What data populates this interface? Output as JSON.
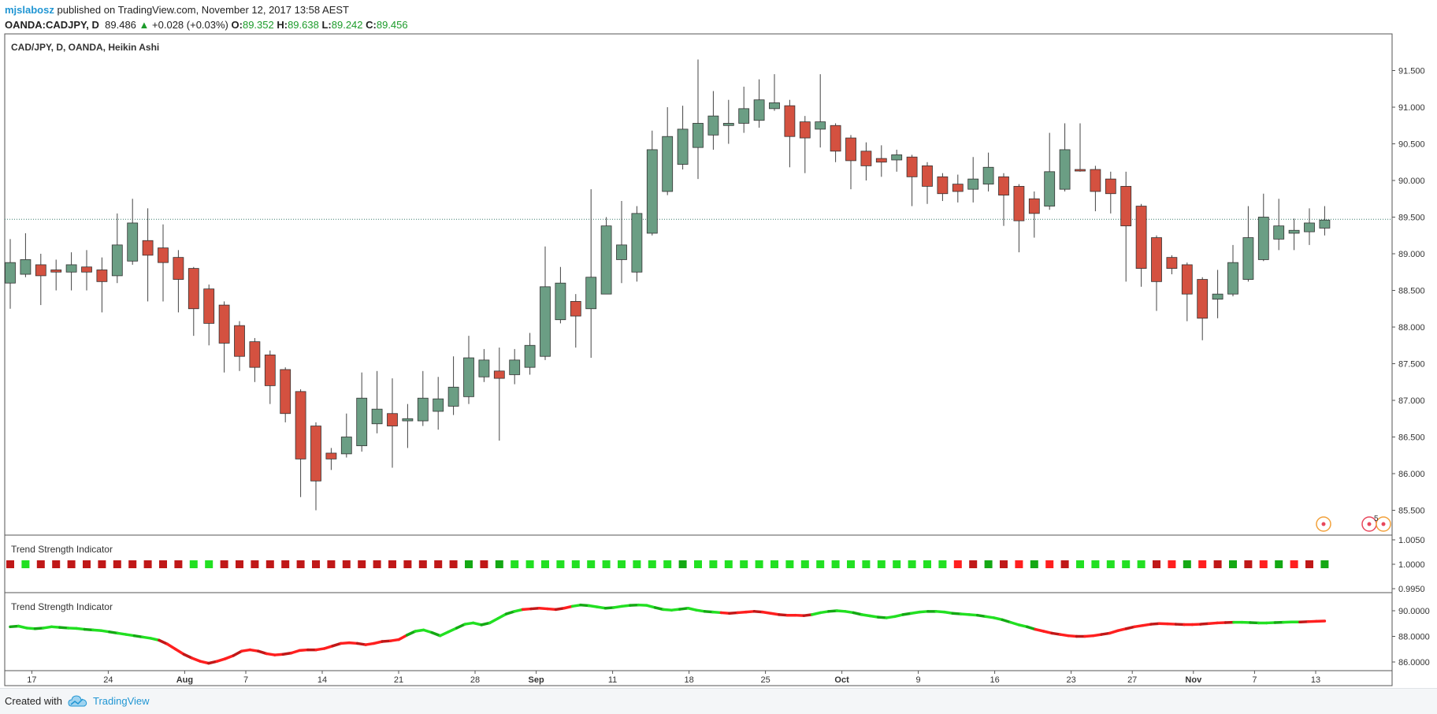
{
  "header": {
    "user": "mjslabosz",
    "published": "published on TradingView.com, November 12, 2017 13:58 AEST",
    "symbol": "OANDA:CADJPY, D",
    "last": "89.486",
    "change_arrow": "▲",
    "change": "+0.028 (+0.03%)",
    "o_label": "O:",
    "o_value": "89.352",
    "h_label": "H:",
    "h_value": "89.638",
    "l_label": "L:",
    "l_value": "89.242",
    "c_label": "C:",
    "c_value": "89.456"
  },
  "footer": {
    "created_with": "Created with",
    "brand": "TradingView"
  },
  "markers": {
    "badge_count": "5"
  },
  "colors": {
    "up_candle": "#6b9e84",
    "down_candle": "#d45140",
    "bright_green": "#22e022",
    "dark_green": "#14a814",
    "bright_red": "#ff1f1f",
    "dark_red": "#c01818",
    "marker_orange": "#f2a13b",
    "marker_red": "#e8475c"
  },
  "chart_data": [
    {
      "type": "candlestick",
      "title": "CAD/JPY, D, OANDA, Heikin Ashi",
      "y_ticks": [
        "91.500",
        "91.000",
        "90.500",
        "90.000",
        "89.500",
        "89.000",
        "88.500",
        "88.000",
        "87.500",
        "87.000",
        "86.500",
        "86.000",
        "85.500"
      ],
      "ylim": [
        85.2,
        91.9
      ],
      "last_price_line": 89.47,
      "x_ticks": [
        {
          "i": 1,
          "label": "17"
        },
        {
          "i": 6,
          "label": "24"
        },
        {
          "i": 11,
          "label": "Aug"
        },
        {
          "i": 15,
          "label": "7"
        },
        {
          "i": 20,
          "label": "14"
        },
        {
          "i": 25,
          "label": "21"
        },
        {
          "i": 30,
          "label": "28"
        },
        {
          "i": 34,
          "label": "Sep"
        },
        {
          "i": 39,
          "label": "11"
        },
        {
          "i": 44,
          "label": "18"
        },
        {
          "i": 49,
          "label": "25"
        },
        {
          "i": 54,
          "label": "Oct"
        },
        {
          "i": 59,
          "label": "9"
        },
        {
          "i": 64,
          "label": "16"
        },
        {
          "i": 69,
          "label": "23"
        },
        {
          "i": 73,
          "label": "27"
        },
        {
          "i": 77,
          "label": "Nov"
        },
        {
          "i": 81,
          "label": "7"
        },
        {
          "i": 85,
          "label": "13"
        }
      ],
      "candles": [
        {
          "o": 88.6,
          "h": 89.2,
          "l": 88.25,
          "c": 88.88
        },
        {
          "o": 88.72,
          "h": 89.28,
          "l": 88.68,
          "c": 88.92
        },
        {
          "o": 88.85,
          "h": 89.0,
          "l": 88.3,
          "c": 88.7
        },
        {
          "o": 88.78,
          "h": 88.92,
          "l": 88.5,
          "c": 88.75
        },
        {
          "o": 88.75,
          "h": 89.02,
          "l": 88.5,
          "c": 88.85
        },
        {
          "o": 88.82,
          "h": 89.05,
          "l": 88.5,
          "c": 88.75
        },
        {
          "o": 88.78,
          "h": 88.95,
          "l": 88.2,
          "c": 88.62
        },
        {
          "o": 88.7,
          "h": 89.55,
          "l": 88.6,
          "c": 89.12
        },
        {
          "o": 88.9,
          "h": 89.75,
          "l": 88.85,
          "c": 89.42
        },
        {
          "o": 89.18,
          "h": 89.62,
          "l": 88.35,
          "c": 88.98
        },
        {
          "o": 89.08,
          "h": 89.4,
          "l": 88.35,
          "c": 88.88
        },
        {
          "o": 88.95,
          "h": 89.05,
          "l": 88.2,
          "c": 88.65
        },
        {
          "o": 88.8,
          "h": 88.82,
          "l": 87.88,
          "c": 88.25
        },
        {
          "o": 88.52,
          "h": 88.58,
          "l": 87.75,
          "c": 88.05
        },
        {
          "o": 88.3,
          "h": 88.35,
          "l": 87.38,
          "c": 87.78
        },
        {
          "o": 88.02,
          "h": 88.08,
          "l": 87.4,
          "c": 87.6
        },
        {
          "o": 87.8,
          "h": 87.85,
          "l": 87.25,
          "c": 87.45
        },
        {
          "o": 87.62,
          "h": 87.68,
          "l": 86.95,
          "c": 87.2
        },
        {
          "o": 87.42,
          "h": 87.45,
          "l": 86.7,
          "c": 86.82
        },
        {
          "o": 87.12,
          "h": 87.15,
          "l": 85.68,
          "c": 86.2
        },
        {
          "o": 86.65,
          "h": 86.7,
          "l": 85.5,
          "c": 85.9
        },
        {
          "o": 86.28,
          "h": 86.35,
          "l": 86.05,
          "c": 86.2
        },
        {
          "o": 86.27,
          "h": 86.82,
          "l": 86.22,
          "c": 86.5
        },
        {
          "o": 86.38,
          "h": 87.38,
          "l": 86.3,
          "c": 87.03
        },
        {
          "o": 86.68,
          "h": 87.4,
          "l": 86.55,
          "c": 86.88
        },
        {
          "o": 86.82,
          "h": 87.3,
          "l": 86.08,
          "c": 86.65
        },
        {
          "o": 86.72,
          "h": 86.95,
          "l": 86.35,
          "c": 86.75
        },
        {
          "o": 86.72,
          "h": 87.4,
          "l": 86.65,
          "c": 87.03
        },
        {
          "o": 86.85,
          "h": 87.32,
          "l": 86.6,
          "c": 87.02
        },
        {
          "o": 86.92,
          "h": 87.6,
          "l": 86.8,
          "c": 87.18
        },
        {
          "o": 87.05,
          "h": 87.88,
          "l": 86.95,
          "c": 87.58
        },
        {
          "o": 87.32,
          "h": 87.7,
          "l": 87.25,
          "c": 87.55
        },
        {
          "o": 87.4,
          "h": 87.72,
          "l": 86.45,
          "c": 87.3
        },
        {
          "o": 87.35,
          "h": 87.7,
          "l": 87.22,
          "c": 87.55
        },
        {
          "o": 87.45,
          "h": 87.92,
          "l": 87.35,
          "c": 87.75
        },
        {
          "o": 87.6,
          "h": 89.1,
          "l": 87.55,
          "c": 88.55
        },
        {
          "o": 88.1,
          "h": 88.82,
          "l": 88.05,
          "c": 88.6
        },
        {
          "o": 88.35,
          "h": 88.45,
          "l": 87.72,
          "c": 88.15
        },
        {
          "o": 88.25,
          "h": 89.88,
          "l": 87.58,
          "c": 88.68
        },
        {
          "o": 88.45,
          "h": 89.5,
          "l": 88.45,
          "c": 89.38
        },
        {
          "o": 88.92,
          "h": 89.72,
          "l": 88.6,
          "c": 89.12
        },
        {
          "o": 88.75,
          "h": 89.65,
          "l": 88.62,
          "c": 89.55
        },
        {
          "o": 89.28,
          "h": 90.68,
          "l": 89.25,
          "c": 90.42
        },
        {
          "o": 89.85,
          "h": 91.0,
          "l": 89.8,
          "c": 90.6
        },
        {
          "o": 90.22,
          "h": 91.02,
          "l": 90.15,
          "c": 90.7
        },
        {
          "o": 90.45,
          "h": 91.65,
          "l": 90.02,
          "c": 90.78
        },
        {
          "o": 90.62,
          "h": 91.22,
          "l": 90.42,
          "c": 90.88
        },
        {
          "o": 90.75,
          "h": 91.1,
          "l": 90.5,
          "c": 90.78
        },
        {
          "o": 90.78,
          "h": 91.28,
          "l": 90.65,
          "c": 90.98
        },
        {
          "o": 90.82,
          "h": 91.38,
          "l": 90.72,
          "c": 91.1
        },
        {
          "o": 90.98,
          "h": 91.45,
          "l": 90.95,
          "c": 91.06
        },
        {
          "o": 91.02,
          "h": 91.1,
          "l": 90.18,
          "c": 90.6
        },
        {
          "o": 90.8,
          "h": 90.88,
          "l": 90.1,
          "c": 90.58
        },
        {
          "o": 90.7,
          "h": 91.45,
          "l": 90.45,
          "c": 90.8
        },
        {
          "o": 90.75,
          "h": 90.78,
          "l": 90.25,
          "c": 90.4
        },
        {
          "o": 90.58,
          "h": 90.62,
          "l": 89.88,
          "c": 90.27
        },
        {
          "o": 90.4,
          "h": 90.52,
          "l": 90.0,
          "c": 90.2
        },
        {
          "o": 90.3,
          "h": 90.48,
          "l": 90.05,
          "c": 90.25
        },
        {
          "o": 90.28,
          "h": 90.42,
          "l": 90.12,
          "c": 90.35
        },
        {
          "o": 90.32,
          "h": 90.35,
          "l": 89.65,
          "c": 90.05
        },
        {
          "o": 90.2,
          "h": 90.25,
          "l": 89.68,
          "c": 89.92
        },
        {
          "o": 90.05,
          "h": 90.1,
          "l": 89.72,
          "c": 89.82
        },
        {
          "o": 89.95,
          "h": 90.08,
          "l": 89.7,
          "c": 89.85
        },
        {
          "o": 89.88,
          "h": 90.32,
          "l": 89.7,
          "c": 90.02
        },
        {
          "o": 89.95,
          "h": 90.38,
          "l": 89.85,
          "c": 90.18
        },
        {
          "o": 90.05,
          "h": 90.1,
          "l": 89.38,
          "c": 89.8
        },
        {
          "o": 89.92,
          "h": 89.95,
          "l": 89.02,
          "c": 89.45
        },
        {
          "o": 89.75,
          "h": 89.85,
          "l": 89.22,
          "c": 89.55
        },
        {
          "o": 89.65,
          "h": 90.65,
          "l": 89.6,
          "c": 90.12
        },
        {
          "o": 89.88,
          "h": 90.78,
          "l": 89.85,
          "c": 90.42
        },
        {
          "o": 90.15,
          "h": 90.78,
          "l": 90.12,
          "c": 90.13
        },
        {
          "o": 90.15,
          "h": 90.2,
          "l": 89.58,
          "c": 89.85
        },
        {
          "o": 90.02,
          "h": 90.12,
          "l": 89.55,
          "c": 89.82
        },
        {
          "o": 89.92,
          "h": 90.12,
          "l": 88.62,
          "c": 89.38
        },
        {
          "o": 89.65,
          "h": 89.68,
          "l": 88.55,
          "c": 88.8
        },
        {
          "o": 89.22,
          "h": 89.25,
          "l": 88.22,
          "c": 88.62
        },
        {
          "o": 88.95,
          "h": 88.98,
          "l": 88.72,
          "c": 88.8
        },
        {
          "o": 88.85,
          "h": 88.88,
          "l": 88.08,
          "c": 88.45
        },
        {
          "o": 88.65,
          "h": 88.68,
          "l": 87.82,
          "c": 88.12
        },
        {
          "o": 88.38,
          "h": 88.78,
          "l": 88.12,
          "c": 88.45
        },
        {
          "o": 88.45,
          "h": 89.12,
          "l": 88.42,
          "c": 88.88
        },
        {
          "o": 88.65,
          "h": 89.65,
          "l": 88.62,
          "c": 89.22
        },
        {
          "o": 88.92,
          "h": 89.82,
          "l": 88.9,
          "c": 89.5
        },
        {
          "o": 89.2,
          "h": 89.75,
          "l": 89.05,
          "c": 89.38
        },
        {
          "o": 89.28,
          "h": 89.48,
          "l": 89.05,
          "c": 89.32
        },
        {
          "o": 89.3,
          "h": 89.62,
          "l": 89.12,
          "c": 89.42
        },
        {
          "o": 89.35,
          "h": 89.65,
          "l": 89.25,
          "c": 89.46
        }
      ]
    },
    {
      "type": "scatter",
      "title": "Trend Strength Indicator",
      "y_ticks": [
        "1.0050",
        "1.0000",
        "0.9950"
      ],
      "value": 1.0,
      "ylim": [
        0.9935,
        1.0065
      ],
      "marker_colors": "DBDRDRDRDRDRBBDRDRDRDRDRDRDRDRDRDBBBBBBBBBBBDBBBBBBBBBBBBBBBBBRRDRRDRRBBBBBRRDRRDRRDRRDRRDRRBBBBBBBBBBBBB"
    },
    {
      "type": "line",
      "title": "Trend Strength Indicator",
      "y_ticks": [
        "90.0000",
        "88.0000",
        "86.0000"
      ],
      "ylim": [
        85.3,
        90.9
      ],
      "values": [
        88.75,
        88.8,
        88.65,
        88.6,
        88.65,
        88.75,
        88.7,
        88.65,
        88.62,
        88.55,
        88.5,
        88.45,
        88.35,
        88.25,
        88.15,
        88.05,
        87.95,
        87.85,
        87.7,
        87.4,
        87.0,
        86.6,
        86.3,
        86.05,
        85.9,
        86.05,
        86.25,
        86.5,
        86.85,
        86.95,
        86.85,
        86.65,
        86.55,
        86.6,
        86.7,
        86.9,
        86.95,
        86.95,
        87.05,
        87.25,
        87.45,
        87.5,
        87.45,
        87.35,
        87.45,
        87.6,
        87.65,
        87.75,
        88.1,
        88.4,
        88.5,
        88.3,
        88.05,
        88.35,
        88.65,
        88.95,
        89.05,
        88.9,
        89.05,
        89.4,
        89.75,
        89.95,
        90.1,
        90.15,
        90.2,
        90.15,
        90.1,
        90.2,
        90.35,
        90.45,
        90.4,
        90.3,
        90.2,
        90.25,
        90.35,
        90.42,
        90.45,
        90.42,
        90.25,
        90.1,
        90.05,
        90.12,
        90.2,
        90.05,
        89.95,
        89.9,
        89.85,
        89.8,
        89.85,
        89.9,
        89.95,
        89.9,
        89.8,
        89.7,
        89.65,
        89.65,
        89.62,
        89.7,
        89.85,
        89.95,
        90.0,
        89.95,
        89.85,
        89.7,
        89.6,
        89.5,
        89.45,
        89.55,
        89.7,
        89.8,
        89.9,
        89.95,
        89.95,
        89.9,
        89.8,
        89.75,
        89.7,
        89.65,
        89.55,
        89.45,
        89.3,
        89.1,
        88.9,
        88.75,
        88.55,
        88.4,
        88.25,
        88.15,
        88.05,
        88.0,
        88.0,
        88.05,
        88.15,
        88.25,
        88.45,
        88.6,
        88.75,
        88.85,
        88.95,
        89.0,
        88.98,
        88.95,
        88.92,
        88.92,
        88.95,
        89.0,
        89.05,
        89.08,
        89.1,
        89.1,
        89.08,
        89.05,
        89.05,
        89.08,
        89.1,
        89.12,
        89.12,
        89.15,
        89.18,
        89.2
      ],
      "color_segments": "GGGGGGGGGGGGGGGGGGRRRRRRRRRRRRRRRRRRRRRRRRRRRRRRGGGGGGGGGGGGGGRRRRRRGGGGGGGGGGGGGGGGGGRRRRRRRRRRRGGGGGGGGGGGGGGGGGGGGGGGGGGGRRRRRRRRRRRRRRRRRRRRRRRRGGGGGGGGRRRRRRRRRRRRRRRRRRRRRRRRRRRRRRGGGGGGGGGGGGGG"
    }
  ]
}
